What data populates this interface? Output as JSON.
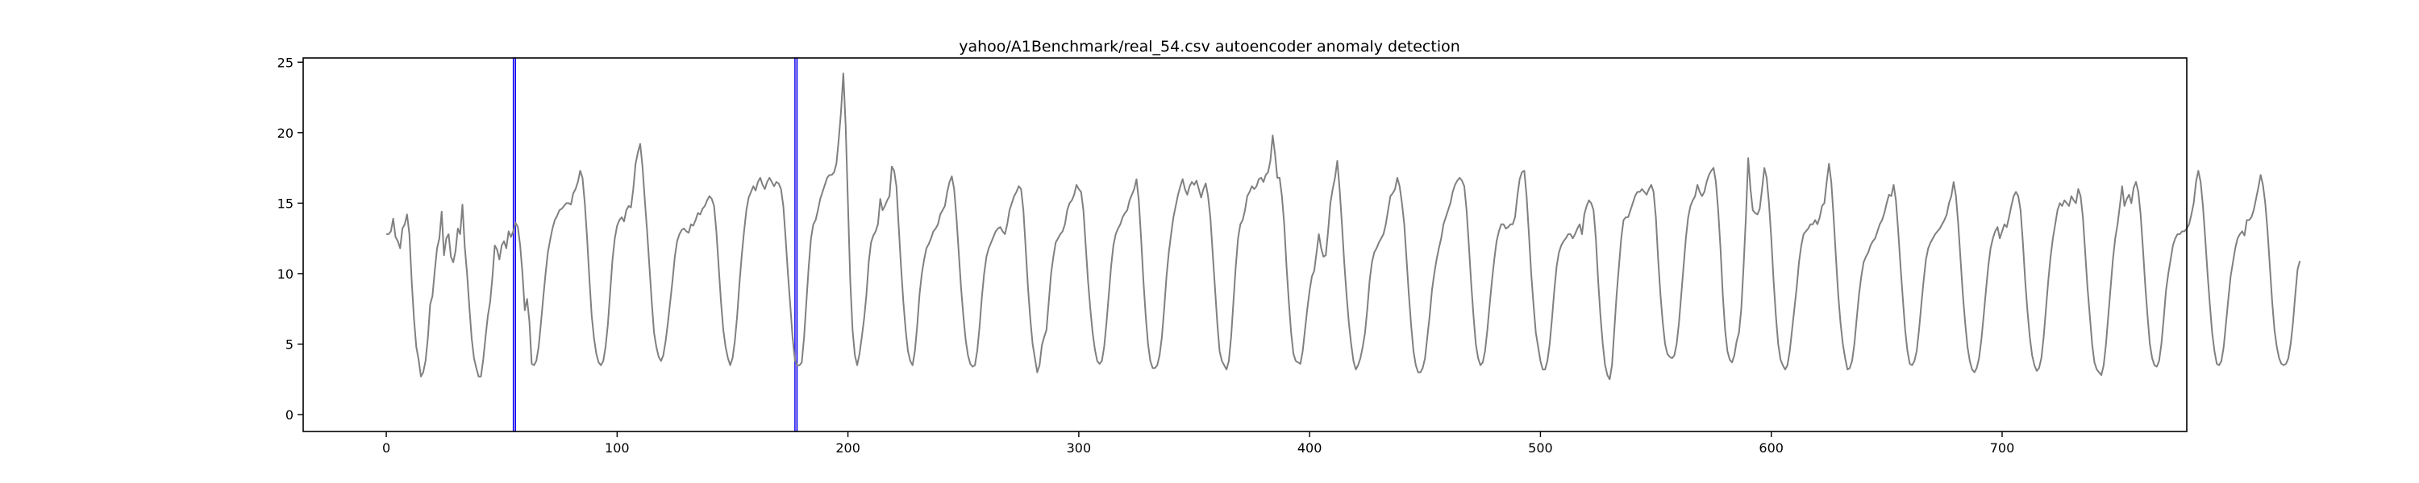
{
  "chart_data": {
    "type": "line",
    "title": "yahoo/A1Benchmark/real_54.csv autoencoder anomaly detection",
    "xlabel": "",
    "ylabel": "",
    "xlim": [
      -36,
      780
    ],
    "ylim": [
      -1.2,
      25.3
    ],
    "xticks": [
      0,
      100,
      200,
      300,
      400,
      500,
      600,
      700
    ],
    "yticks": [
      0,
      5,
      10,
      15,
      20,
      25
    ],
    "grid": false,
    "legend": "none",
    "colors": {
      "series": "#808080",
      "anomaly_fill": "#9370db",
      "anomaly_edge": "#0000ff",
      "axes": "#000000"
    },
    "anomaly_regions": [
      {
        "x_start": 55,
        "x_end": 56
      },
      {
        "x_start": 177,
        "x_end": 178
      }
    ],
    "series": [
      {
        "values": [
          12.8,
          12.8,
          13.0,
          13.9,
          12.6,
          12.3,
          11.8,
          13.2,
          13.5,
          14.2,
          12.8,
          9.5,
          6.8,
          4.8,
          3.9,
          2.7,
          3.0,
          3.8,
          5.4,
          7.8,
          8.4,
          10.2,
          11.8,
          12.5,
          14.4,
          11.3,
          12.5,
          12.8,
          11.2,
          10.8,
          11.6,
          13.2,
          12.8,
          14.9,
          11.9,
          10.0,
          7.6,
          5.4,
          4.0,
          3.3,
          2.7,
          2.7,
          3.9,
          5.5,
          7.0,
          8.0,
          9.8,
          12.0,
          11.7,
          11.0,
          12.0,
          12.3,
          11.8,
          13.0,
          12.6,
          13.0,
          13.6,
          13.3,
          12.0,
          10.0,
          7.4,
          8.2,
          6.6,
          3.6,
          3.5,
          3.8,
          4.8,
          6.5,
          8.3,
          10.0,
          11.5,
          12.4,
          13.2,
          13.8,
          14.1,
          14.5,
          14.6,
          14.8,
          15.0,
          15.0,
          14.9,
          15.7,
          16.0,
          16.5,
          17.3,
          16.8,
          15.0,
          12.5,
          9.6,
          7.0,
          5.4,
          4.3,
          3.7,
          3.5,
          3.8,
          4.8,
          6.4,
          8.7,
          11.0,
          12.5,
          13.4,
          13.8,
          14.0,
          13.7,
          14.5,
          14.8,
          14.7,
          16.0,
          17.8,
          18.6,
          19.2,
          17.6,
          15.2,
          13.0,
          10.5,
          8.0,
          5.8,
          4.8,
          4.1,
          3.8,
          4.2,
          5.2,
          6.5,
          8.0,
          9.5,
          11.2,
          12.3,
          12.8,
          13.1,
          13.2,
          13.0,
          12.9,
          13.5,
          13.4,
          13.8,
          14.3,
          14.2,
          14.6,
          14.8,
          15.2,
          15.5,
          15.3,
          14.8,
          13.0,
          10.5,
          8.0,
          6.0,
          4.8,
          4.0,
          3.5,
          4.0,
          5.2,
          7.0,
          9.3,
          11.3,
          13.0,
          14.5,
          15.4,
          15.8,
          16.2,
          15.9,
          16.5,
          16.8,
          16.3,
          16.0,
          16.5,
          16.8,
          16.5,
          16.2,
          16.5,
          16.4,
          16.0,
          14.8,
          12.5,
          10.0,
          7.8,
          5.5,
          3.9,
          3.5,
          3.5,
          3.7,
          5.5,
          8.0,
          10.5,
          12.5,
          13.5,
          13.8,
          14.5,
          15.3,
          15.8,
          16.3,
          16.8,
          17.0,
          17.0,
          17.2,
          17.8,
          19.5,
          21.5,
          24.2,
          20.5,
          15.0,
          9.5,
          6.0,
          4.2,
          3.5,
          4.3,
          5.5,
          6.8,
          8.5,
          10.8,
          12.2,
          12.7,
          13.0,
          13.5,
          15.3,
          14.5,
          14.8,
          15.2,
          15.5,
          17.6,
          17.3,
          16.2,
          13.3,
          10.5,
          8.0,
          6.0,
          4.5,
          3.8,
          3.5,
          4.5,
          6.3,
          8.5,
          10.0,
          11.0,
          11.8,
          12.1,
          12.5,
          13.0,
          13.2,
          13.5,
          14.2,
          14.5,
          14.8,
          15.8,
          16.5,
          16.9,
          16.0,
          14.0,
          11.5,
          9.0,
          7.0,
          5.3,
          4.2,
          3.6,
          3.4,
          3.5,
          4.5,
          6.2,
          8.3,
          10.0,
          11.2,
          11.8,
          12.2,
          12.6,
          13.0,
          13.2,
          13.3,
          13.0,
          12.8,
          13.5,
          14.5,
          15.0,
          15.5,
          15.8,
          16.2,
          16.0,
          14.5,
          11.8,
          9.0,
          6.8,
          5.0,
          4.0,
          3.0,
          3.5,
          4.9,
          5.5,
          6.0,
          8.0,
          10.0,
          11.2,
          12.2,
          12.5,
          12.8,
          13.0,
          13.5,
          14.5,
          15.0,
          15.2,
          15.6,
          16.3,
          16.0,
          15.8,
          14.5,
          12.0,
          9.5,
          7.5,
          5.8,
          4.6,
          3.8,
          3.6,
          3.8,
          4.8,
          6.5,
          8.5,
          10.5,
          12.0,
          12.8,
          13.2,
          13.5,
          14.0,
          14.3,
          14.5,
          15.2,
          15.6,
          16.0,
          16.7,
          15.2,
          12.5,
          9.5,
          7.0,
          5.0,
          3.8,
          3.3,
          3.3,
          3.5,
          4.2,
          5.5,
          7.5,
          9.8,
          11.5,
          12.8,
          14.0,
          14.8,
          15.6,
          16.2,
          16.7,
          16.0,
          15.6,
          16.2,
          16.5,
          16.3,
          16.6,
          16.0,
          15.4,
          16.0,
          16.4,
          15.5,
          14.0,
          11.5,
          9.0,
          6.5,
          4.5,
          3.8,
          3.5,
          3.2,
          3.8,
          5.5,
          8.0,
          10.5,
          12.5,
          13.5,
          13.8,
          14.5,
          15.5,
          15.8,
          16.2,
          16.0,
          16.2,
          16.7,
          16.8,
          16.5,
          17.0,
          17.2,
          18.0,
          19.8,
          18.5,
          16.8,
          16.8,
          15.5,
          13.5,
          10.5,
          8.0,
          5.8,
          4.3,
          3.8,
          3.7,
          3.6,
          4.5,
          6.0,
          7.5,
          8.8,
          9.8,
          10.2,
          11.5,
          12.8,
          11.8,
          11.2,
          11.3,
          13.0,
          15.0,
          16.0,
          16.8,
          18.0,
          16.0,
          13.5,
          10.8,
          8.5,
          6.5,
          5.0,
          3.8,
          3.2,
          3.5,
          4.0,
          4.8,
          5.8,
          7.5,
          9.5,
          10.8,
          11.5,
          11.8,
          12.2,
          12.5,
          12.8,
          13.5,
          14.5,
          15.5,
          15.7,
          16.0,
          16.8,
          16.2,
          15.0,
          13.5,
          11.0,
          8.5,
          6.3,
          4.5,
          3.5,
          3.0,
          3.0,
          3.3,
          4.0,
          5.5,
          7.0,
          8.8,
          10.0,
          11.0,
          11.8,
          12.5,
          13.5,
          14.0,
          14.5,
          15.0,
          15.8,
          16.3,
          16.6,
          16.8,
          16.6,
          16.2,
          14.5,
          12.0,
          9.3,
          7.0,
          5.0,
          4.0,
          3.5,
          3.7,
          4.5,
          6.0,
          7.8,
          9.5,
          11.0,
          12.3,
          13.0,
          13.5,
          13.5,
          13.2,
          13.3,
          13.5,
          13.5,
          14.0,
          15.5,
          16.7,
          17.2,
          17.3,
          15.5,
          12.8,
          10.0,
          7.8,
          5.8,
          4.8,
          3.8,
          3.2,
          3.2,
          3.8,
          5.0,
          6.8,
          8.8,
          10.5,
          11.5,
          12.0,
          12.3,
          12.5,
          12.8,
          12.8,
          12.5,
          12.8,
          13.2,
          13.5,
          12.8,
          14.2,
          14.8,
          15.2,
          15.0,
          14.5,
          12.5,
          9.5,
          7.0,
          5.0,
          3.5,
          2.8,
          2.5,
          3.5,
          6.0,
          8.5,
          10.5,
          12.5,
          13.8,
          14.0,
          14.0,
          14.5,
          15.0,
          15.5,
          15.8,
          15.8,
          16.0,
          15.8,
          15.6,
          16.0,
          16.3,
          15.8,
          14.0,
          11.0,
          8.5,
          6.5,
          5.0,
          4.3,
          4.1,
          4.0,
          4.2,
          5.0,
          6.5,
          8.5,
          10.5,
          12.5,
          14.0,
          14.8,
          15.2,
          15.5,
          16.3,
          15.8,
          15.5,
          15.8,
          16.5,
          17.0,
          17.3,
          17.5,
          16.5,
          14.5,
          11.8,
          8.5,
          6.0,
          4.5,
          3.9,
          3.7,
          4.2,
          5.2,
          5.8,
          7.5,
          10.5,
          14.0,
          18.2,
          16.0,
          14.5,
          14.3,
          14.2,
          14.6,
          16.0,
          17.5,
          16.8,
          15.0,
          12.5,
          9.5,
          7.0,
          5.0,
          3.9,
          3.5,
          3.2,
          3.5,
          4.5,
          6.0,
          7.5,
          9.0,
          10.8,
          12.0,
          12.8,
          13.0,
          13.2,
          13.5,
          13.5,
          13.8,
          13.5,
          14.0,
          14.8,
          15.0,
          16.5,
          17.8,
          16.5,
          14.0,
          11.2,
          8.5,
          6.5,
          5.0,
          4.0,
          3.2,
          3.3,
          3.8,
          5.0,
          6.8,
          8.5,
          9.8,
          10.8,
          11.2,
          11.5,
          12.0,
          12.3,
          12.5,
          13.0,
          13.5,
          13.8,
          14.3,
          15.0,
          15.6,
          15.5,
          16.3,
          15.2,
          13.0,
          10.5,
          8.2,
          6.0,
          4.5,
          3.6,
          3.5,
          3.8,
          4.5,
          6.0,
          7.8,
          9.5,
          11.0,
          11.8,
          12.2,
          12.5,
          12.8,
          13.0,
          13.2,
          13.5,
          13.8,
          14.2,
          15.0,
          15.5,
          16.5,
          15.5,
          13.5,
          11.0,
          8.5,
          6.5,
          4.8,
          3.8,
          3.2,
          3.0,
          3.3,
          4.0,
          5.3,
          7.0,
          8.8,
          10.5,
          11.8,
          12.5,
          13.0,
          13.3,
          12.5,
          13.0,
          13.5,
          13.3,
          14.0,
          14.8,
          15.5,
          15.8,
          15.5,
          14.5,
          12.2,
          9.5,
          7.3,
          5.5,
          4.2,
          3.5,
          3.1,
          3.3,
          4.0,
          5.5,
          7.5,
          9.5,
          11.2,
          12.5,
          13.5,
          14.5,
          15.0,
          14.8,
          15.2,
          15.0,
          14.8,
          15.5,
          15.2,
          15.0,
          16.0,
          15.5,
          14.0,
          11.5,
          9.0,
          7.0,
          5.0,
          3.7,
          3.2,
          3.0,
          2.8,
          3.5,
          5.0,
          7.0,
          9.0,
          11.0,
          12.5,
          13.5,
          14.8,
          16.2,
          14.8,
          15.3,
          15.6,
          15.0,
          16.1,
          16.5,
          15.8,
          14.2,
          11.8,
          9.2,
          7.0,
          5.0,
          4.0,
          3.5,
          3.4,
          3.8,
          5.0,
          6.8,
          8.8,
          10.0,
          11.0,
          12.0,
          12.5,
          12.8,
          12.8,
          13.0,
          13.0,
          13.2,
          13.5,
          14.2,
          15.0,
          16.5,
          17.3,
          16.5,
          14.8,
          12.5,
          10.0,
          7.8,
          5.8,
          4.5,
          3.6,
          3.5,
          3.8,
          4.8,
          6.5,
          8.2,
          9.8,
          10.8,
          11.8,
          12.5,
          12.8,
          13.0,
          12.7,
          13.8,
          13.8,
          14.0,
          14.5,
          15.3,
          16.1,
          17.0,
          16.3,
          15.0,
          13.0,
          10.5,
          8.0,
          6.0,
          4.8,
          4.0,
          3.6,
          3.5,
          3.6,
          4.0,
          5.0,
          6.5,
          8.5,
          10.3,
          10.9
        ],
        "x_start": 0
      }
    ]
  }
}
